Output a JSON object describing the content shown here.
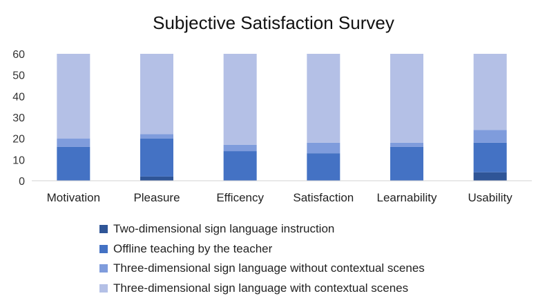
{
  "chart_data": {
    "type": "bar",
    "stacked": true,
    "title": "Subjective Satisfaction Survey",
    "xlabel": "",
    "ylabel": "",
    "ylim": [
      0,
      60
    ],
    "yticks": [
      0,
      10,
      20,
      30,
      40,
      50,
      60
    ],
    "categories": [
      "Motivation",
      "Pleasure",
      "Efficency",
      "Satisfaction",
      "Learnability",
      "Usability"
    ],
    "series": [
      {
        "name": "Two-dimensional sign language instruction",
        "color": "#2f5597",
        "values": [
          0,
          2,
          0,
          0,
          0,
          4
        ]
      },
      {
        "name": "Offline teaching by the teacher",
        "color": "#4472c4",
        "values": [
          16,
          18,
          14,
          13,
          16,
          14
        ]
      },
      {
        "name": "Three-dimensional sign language without contextual scenes",
        "color": "#7f9cdc",
        "values": [
          4,
          2,
          3,
          5,
          2,
          6
        ]
      },
      {
        "name": "Three-dimensional sign language with contextual scenes",
        "color": "#b4c0e6",
        "values": [
          40,
          38,
          43,
          42,
          42,
          36
        ]
      }
    ],
    "legend_position": "bottom",
    "grid": false
  }
}
